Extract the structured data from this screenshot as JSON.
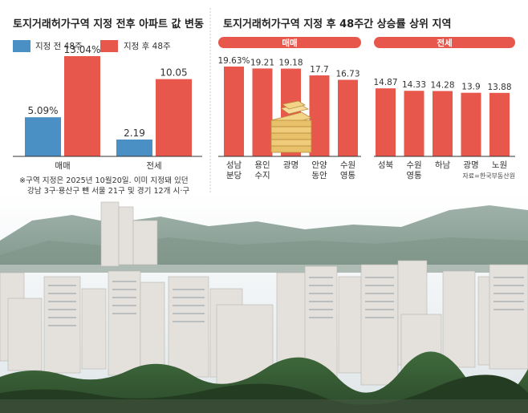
{
  "left_chart": {
    "title": "토지거래허가구역 지정 전후 아파트 값 변동",
    "legend": [
      "지정 전 48주",
      "지정 후 48주"
    ],
    "colors": {
      "before": "#4a90c4",
      "after": "#e8574c"
    },
    "note_line1": "※구역 지정은 2025년 10월20일. 이미 지정돼 있던",
    "note_line2": "강남 3구·용산구 뺀 서울 21구 및 경기 12개 시·구"
  },
  "right_chart": {
    "title": "토지거래허가구역 지정 후 48주간 상승률 상위 지역",
    "group_sale": "매매",
    "group_jeonse": "전세",
    "source": "자료=한국부동산원",
    "colors": {
      "bar": "#e8574c",
      "pill": "#e8574c"
    }
  },
  "chart_data": [
    {
      "type": "bar",
      "categories": [
        "매매",
        "전세"
      ],
      "series": [
        {
          "name": "지정 전 48주",
          "values": [
            5.09,
            2.19
          ],
          "labels": [
            "5.09%",
            "2.19"
          ]
        },
        {
          "name": "지정 후 48주",
          "values": [
            13.04,
            10.05
          ],
          "labels": [
            "13.04%",
            "10.05"
          ]
        }
      ],
      "title": "토지거래허가구역 지정 전후 아파트 값 변동"
    },
    {
      "type": "bar",
      "title": "토지거래허가구역 지정 후 48주간 상승률 상위 지역",
      "groups": [
        {
          "name": "매매",
          "categories": [
            [
              "성남",
              "분당"
            ],
            [
              "용인",
              "수지"
            ],
            [
              "광명"
            ],
            [
              "안양",
              "동안"
            ],
            [
              "수원",
              "영통"
            ]
          ],
          "values": [
            19.63,
            19.21,
            19.18,
            17.7,
            16.73
          ],
          "labels": [
            "19.63%",
            "19.21",
            "19.18",
            "17.7",
            "16.73"
          ]
        },
        {
          "name": "전세",
          "categories": [
            [
              "성북"
            ],
            [
              "수원",
              "영통"
            ],
            [
              "하남"
            ],
            [
              "광명"
            ],
            [
              "노원"
            ]
          ],
          "values": [
            14.87,
            14.33,
            14.28,
            13.9,
            13.88
          ],
          "labels": [
            "14.87",
            "14.33",
            "14.28",
            "13.9",
            "13.88"
          ]
        }
      ]
    }
  ]
}
